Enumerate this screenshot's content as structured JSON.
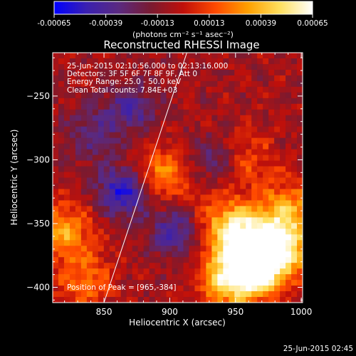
{
  "colorbar": {
    "tick_labels": [
      "-0.00065",
      "-0.00039",
      "-0.00013",
      "0.00013",
      "0.00039",
      "0.00065"
    ],
    "unit": "(photons cm⁻² s⁻¹ asec⁻²)",
    "colors": [
      "#0000ff",
      "#3a20b0",
      "#5a2a80",
      "#7a1a30",
      "#c0100a",
      "#ff4a00",
      "#ffa000",
      "#ffe060",
      "#ffffff"
    ]
  },
  "chart_data": {
    "type": "heatmap",
    "title": "Reconstructed RHESSI Image",
    "xlabel": "Heliocentric X (arcsec)",
    "ylabel": "Heliocentric Y (arcsec)",
    "xlim": [
      811,
      1001
    ],
    "ylim": [
      -412,
      -216
    ],
    "xticks": [
      850,
      900,
      950,
      1000
    ],
    "yticks": [
      -250,
      -300,
      -350,
      -400
    ],
    "value_range": [
      -0.00065,
      0.00065
    ],
    "limb_line": [
      [
        850,
        -412
      ],
      [
        913,
        -216
      ]
    ],
    "annotations": [
      "25-Jun-2015 02:10:56.000 to 02:13:16.000",
      "Detectors: 3F 5F 6F 7F 8F 9F, Att 0",
      "Energy Range: 25.0 - 50.0 keV",
      "Clean    Total counts: 7.84E+03"
    ],
    "peak_label": "Position of Peak = [965,-384]",
    "peak": [
      965,
      -384
    ],
    "bright_regions": [
      {
        "x": 965,
        "y": -384,
        "level": 1.0
      },
      {
        "x": 955,
        "y": -360,
        "level": 0.85
      },
      {
        "x": 985,
        "y": -370,
        "level": 0.8
      },
      {
        "x": 945,
        "y": -395,
        "level": 0.75
      },
      {
        "x": 990,
        "y": -340,
        "level": 0.6
      },
      {
        "x": 892,
        "y": -312,
        "level": 0.55
      },
      {
        "x": 820,
        "y": -355,
        "level": 0.6
      },
      {
        "x": 835,
        "y": -395,
        "level": 0.45
      },
      {
        "x": 960,
        "y": -300,
        "level": 0.35
      },
      {
        "x": 935,
        "y": -345,
        "level": 0.35
      }
    ],
    "dim_regions": [
      {
        "x": 866,
        "y": -324,
        "level": -0.8
      },
      {
        "x": 905,
        "y": -355,
        "level": -0.55
      },
      {
        "x": 870,
        "y": -260,
        "level": -0.45
      },
      {
        "x": 935,
        "y": -300,
        "level": -0.35
      },
      {
        "x": 840,
        "y": -280,
        "level": -0.35
      }
    ]
  },
  "footer_timestamp": "25-Jun-2015 02:45"
}
